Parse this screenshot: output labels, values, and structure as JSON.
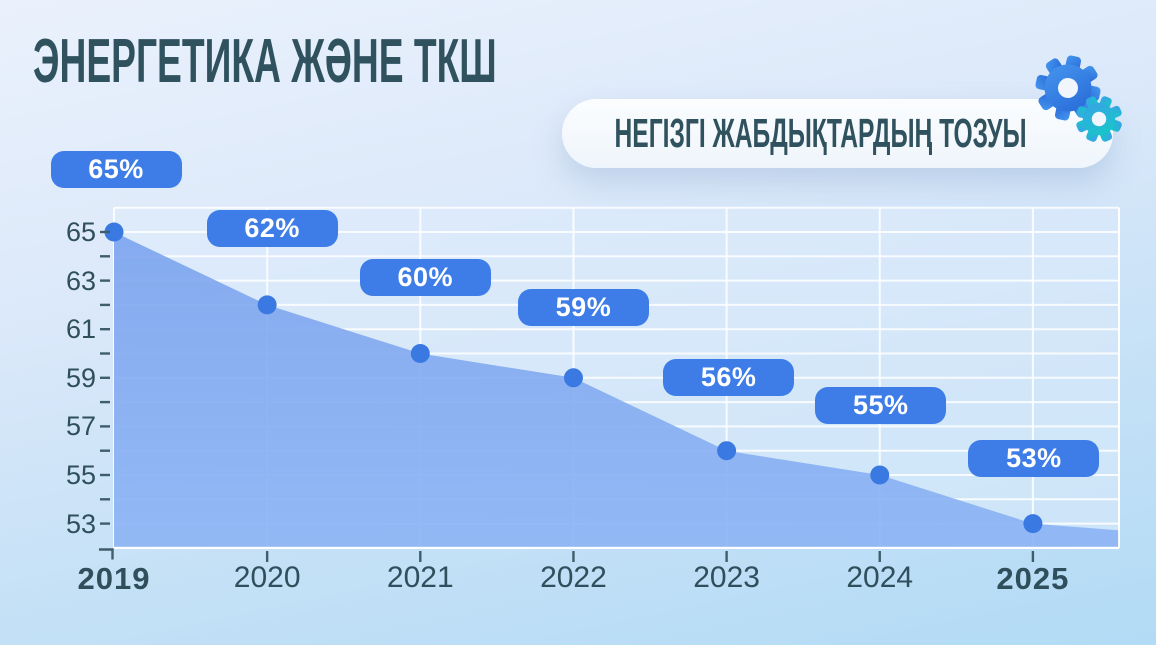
{
  "header": {
    "title": "ЭНЕРГЕТИКА ЖӘНЕ ТКШ",
    "subtitle": "НЕГІЗГІ ЖАБДЫҚТАРДЫҢ ТОЗУЫ"
  },
  "icons": {
    "gears": "two-cogwheels-icon"
  },
  "colors": {
    "accent_blue": "#3E7DE7",
    "dot_blue": "#3A79E2",
    "area_fill_top": "#7BA3EE",
    "area_fill_bottom": "#8BB3F4",
    "grid": "#FFFFFF",
    "tick": "#3F5E6C",
    "text_dark": "#30525F",
    "gear_blue": "#2F7DE2",
    "gear_teal": "#14C9C4",
    "subtitle_bg": "#F4F8FD",
    "bg_top": "#EAF1FC",
    "bg_bottom": "#B2DBF5"
  },
  "chart_data": {
    "type": "area",
    "title": "НЕГІЗГІ ЖАБДЫҚТАРДЫҢ ТОЗУЫ",
    "categories": [
      "2019",
      "2020",
      "2021",
      "2022",
      "2023",
      "2024",
      "2025"
    ],
    "values": [
      65,
      62,
      60,
      59,
      56,
      55,
      53
    ],
    "point_labels": [
      "65%",
      "62%",
      "60%",
      "59%",
      "56%",
      "55%",
      "53%"
    ],
    "unit": "%",
    "y_tick_labels": [
      65,
      63,
      61,
      59,
      57,
      55,
      53
    ],
    "ylim": [
      52,
      66
    ],
    "y_minor_tick_step": 1,
    "xlabel": "",
    "ylabel": "",
    "grid": true,
    "legend": false,
    "emphasized_categories": [
      "2019",
      "2025"
    ]
  }
}
